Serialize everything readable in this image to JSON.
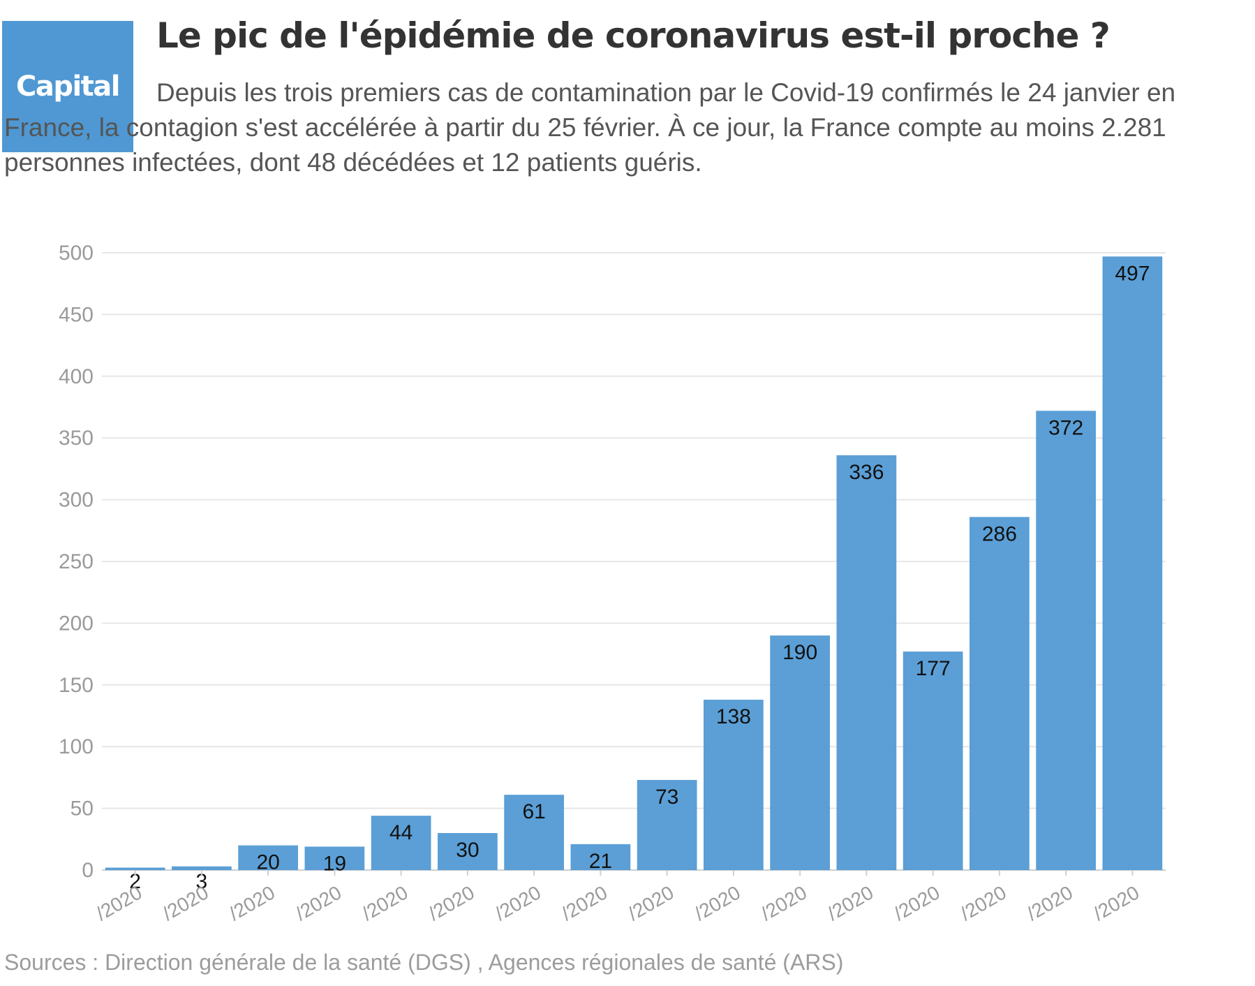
{
  "logo": {
    "text": "Capital",
    "color": "#4f98d3"
  },
  "header": {
    "title": "Le pic de l'épidémie de coronavirus est-il proche ?",
    "subtitle": "Depuis les trois premiers cas de contamination par le Covid-19 confirmés le 24 janvier en France, la contagion s'est accélérée à partir du 25 février. À ce jour, la France compte au moins 2.281 personnes infectées, dont 48 décédées et 12 patients guéris."
  },
  "footer": {
    "source": "Sources : Direction générale de la santé (DGS) , Agences régionales de santé (ARS)"
  },
  "chart_data": {
    "type": "bar",
    "title": "",
    "xlabel": "",
    "ylabel": "",
    "ylim": [
      0,
      500
    ],
    "yticks": [
      0,
      50,
      100,
      150,
      200,
      250,
      300,
      350,
      400,
      450,
      500
    ],
    "grid": true,
    "bar_color": "#4f98d3",
    "categories": [
      "/2020",
      "/2020",
      "/2020",
      "/2020",
      "/2020",
      "/2020",
      "/2020",
      "/2020",
      "/2020",
      "/2020",
      "/2020",
      "/2020",
      "/2020",
      "/2020",
      "/2020",
      "/2020"
    ],
    "values": [
      2,
      3,
      20,
      19,
      44,
      30,
      61,
      21,
      73,
      138,
      190,
      336,
      177,
      286,
      372,
      497
    ]
  }
}
